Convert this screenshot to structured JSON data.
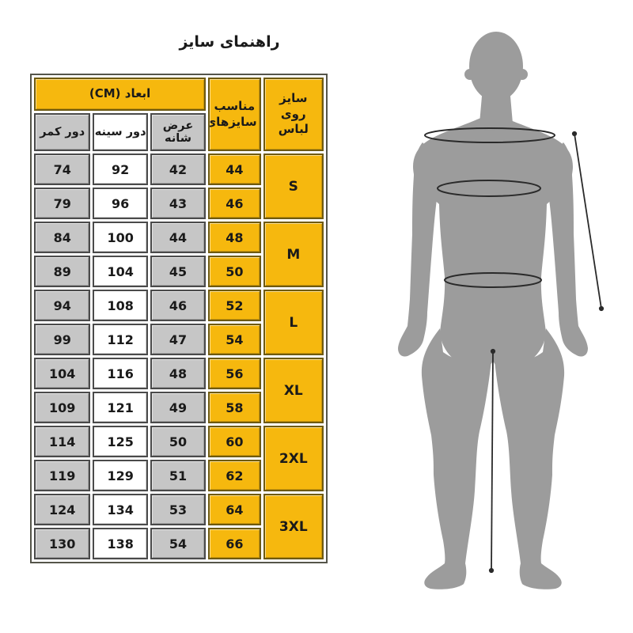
{
  "page": {
    "title": "راهنمای سایز"
  },
  "colors": {
    "yellow": "#f6b80e",
    "gray_cell": "#c6c6c6",
    "white_cell": "#ffffff",
    "silhouette": "#9c9c9c",
    "border_dark": "#4a4a4a",
    "border_olive": "#6e5a10",
    "text": "#1a1a1a",
    "page_bg": "#ffffff"
  },
  "size_table": {
    "direction": "rtl",
    "header": {
      "size_on_garment": "سایز روی لباس",
      "fits_sizes": "مناسب سایزهای",
      "dimensions_cm": "ابعاد (CM)",
      "shoulder_width": "عرض شانه",
      "chest_circumference": "دور سینه",
      "waist_circumference": "دور کمر"
    },
    "groups": [
      {
        "size_label": "S",
        "rows": [
          {
            "fit_size": "44",
            "shoulder": "42",
            "chest": "92",
            "waist": "74"
          },
          {
            "fit_size": "46",
            "shoulder": "43",
            "chest": "96",
            "waist": "79"
          }
        ]
      },
      {
        "size_label": "M",
        "rows": [
          {
            "fit_size": "48",
            "shoulder": "44",
            "chest": "100",
            "waist": "84"
          },
          {
            "fit_size": "50",
            "shoulder": "45",
            "chest": "104",
            "waist": "89"
          }
        ]
      },
      {
        "size_label": "L",
        "rows": [
          {
            "fit_size": "52",
            "shoulder": "46",
            "chest": "108",
            "waist": "94"
          },
          {
            "fit_size": "54",
            "shoulder": "47",
            "chest": "112",
            "waist": "99"
          }
        ]
      },
      {
        "size_label": "XL",
        "rows": [
          {
            "fit_size": "56",
            "shoulder": "48",
            "chest": "116",
            "waist": "104"
          },
          {
            "fit_size": "58",
            "shoulder": "49",
            "chest": "121",
            "waist": "109"
          }
        ]
      },
      {
        "size_label": "2XL",
        "rows": [
          {
            "fit_size": "60",
            "shoulder": "50",
            "chest": "125",
            "waist": "114"
          },
          {
            "fit_size": "62",
            "shoulder": "51",
            "chest": "129",
            "waist": "119"
          }
        ]
      },
      {
        "size_label": "3XL",
        "rows": [
          {
            "fit_size": "64",
            "shoulder": "53",
            "chest": "134",
            "waist": "124"
          },
          {
            "fit_size": "66",
            "shoulder": "54",
            "chest": "138",
            "waist": "130"
          }
        ]
      }
    ]
  },
  "figure": {
    "name": "male-body-silhouette",
    "measurement_marks": [
      "shoulder-ellipse",
      "chest-ellipse",
      "waist-ellipse",
      "sleeve-length-line",
      "inseam-line"
    ]
  }
}
